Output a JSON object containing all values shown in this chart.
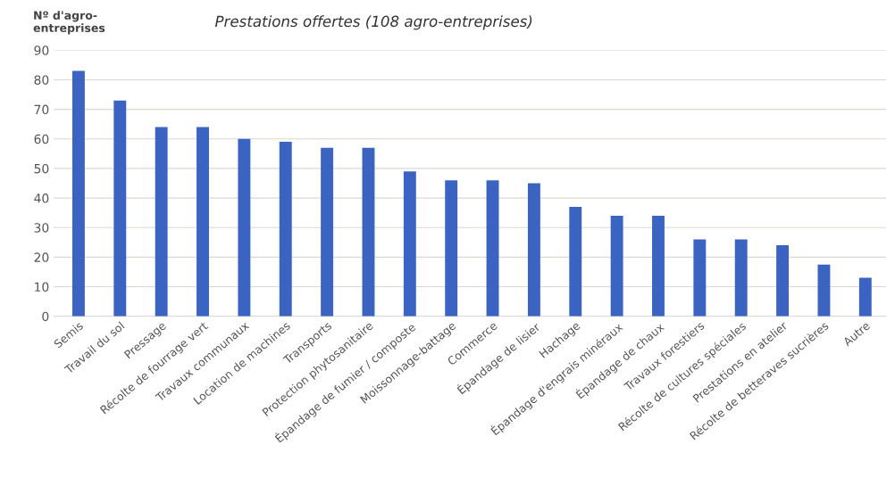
{
  "chart_data": {
    "type": "bar",
    "title": "Prestations offertes (108 agro-entreprises)",
    "ylabel": "Nº d'agro-\nentreprises",
    "categories": [
      "Semis",
      "Travail du sol",
      "Pressage",
      "Récolte de fourrage vert",
      "Travaux communaux",
      "Location de machines",
      "Transports",
      "Protection phytosanitaire",
      "Épandage de fumier / composte",
      "Moissonnage-battage",
      "Commerce",
      "Épandage de lisier",
      "Hachage",
      "Épandage d'engrais minéraux",
      "Épandage de chaux",
      "Travaux forestiers",
      "Récolte de cultures spéciales",
      "Prestations en atelier",
      "Récolte de betteraves sucrières",
      "Autre"
    ],
    "values": [
      83,
      73,
      64,
      64,
      60,
      59,
      57,
      57,
      49,
      46,
      46,
      45,
      37,
      34,
      34,
      26,
      26,
      24,
      17.5,
      13
    ],
    "color": "#3b63c1",
    "ylim": [
      0,
      90
    ],
    "yticks": [
      0,
      10,
      20,
      30,
      40,
      50,
      60,
      70,
      80,
      90
    ],
    "grid": "y"
  }
}
